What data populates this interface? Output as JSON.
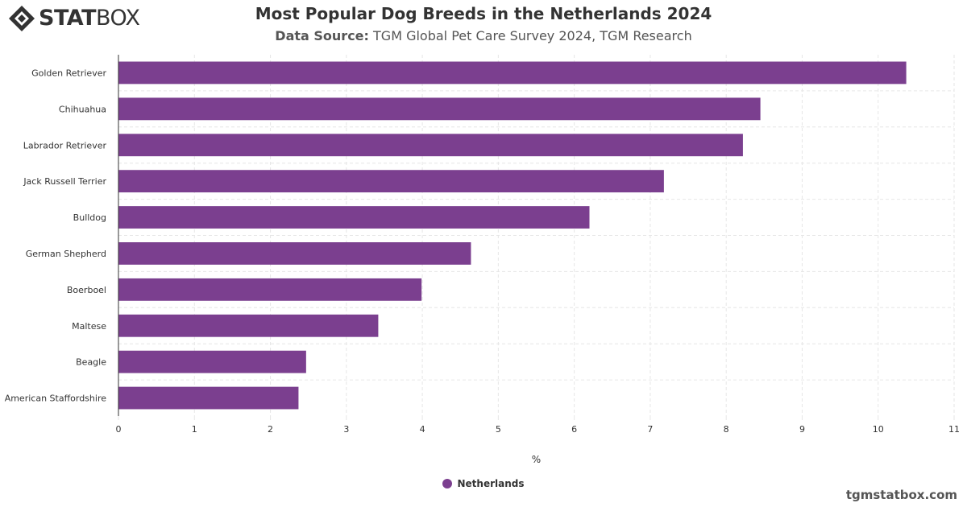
{
  "brand": {
    "logo_bold": "STAT",
    "logo_light": "BOX",
    "watermark": "tgmstatbox.com"
  },
  "header": {
    "title": "Most Popular Dog Breeds in the Netherlands 2024",
    "source_label": "Data Source:",
    "source_text": "TGM Global Pet Care Survey 2024, TGM Research"
  },
  "legend": {
    "label": "Netherlands"
  },
  "colors": {
    "bar": "#7b3f8f",
    "grid": "#e6e6e6",
    "axis": "#333333",
    "text": "#333333"
  },
  "chart_data": {
    "type": "bar",
    "orientation": "horizontal",
    "title": "Most Popular Dog Breeds in the Netherlands 2024",
    "categories": [
      "Golden Retriever",
      "Chihuahua",
      "Labrador Retriever",
      "Jack Russell Terrier",
      "Bulldog",
      "German Shepherd",
      "Boerboel",
      "Maltese",
      "Beagle",
      "American Staffordshire"
    ],
    "series": [
      {
        "name": "Netherlands",
        "values": [
          10.37,
          8.45,
          8.22,
          7.18,
          6.2,
          4.64,
          3.99,
          3.42,
          2.47,
          2.37
        ]
      }
    ],
    "xlabel": "%",
    "ylabel": "",
    "xlim": [
      0,
      11
    ],
    "xticks": [
      0,
      1,
      2,
      3,
      4,
      5,
      6,
      7,
      8,
      9,
      10,
      11
    ],
    "grid": true,
    "grid_style": "dashed",
    "legend_position": "bottom-center"
  }
}
